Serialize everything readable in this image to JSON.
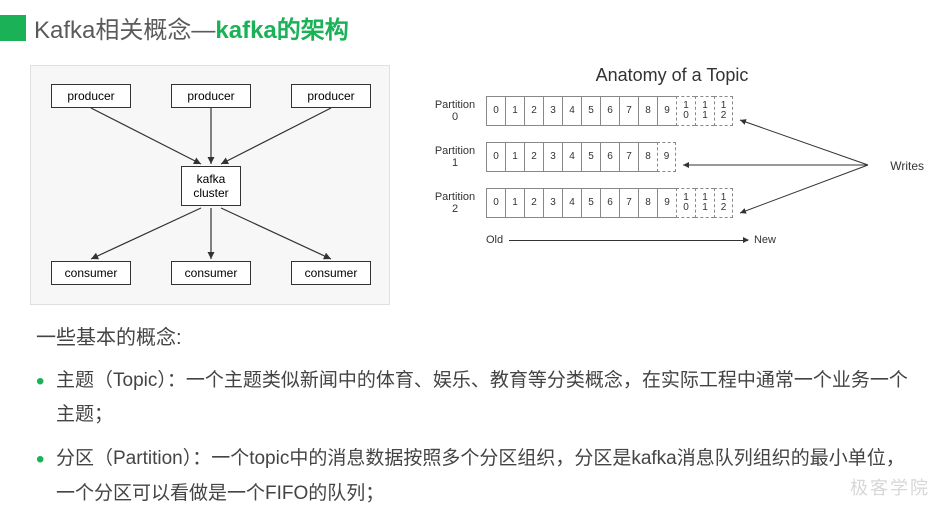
{
  "title": {
    "prefix": "Kafka相关概念— ",
    "highlight": "kafka的架构"
  },
  "colors": {
    "accent": "#1bb156",
    "text": "#444",
    "box_border": "#333",
    "diagram_bg": "#f7f7f7"
  },
  "diagram_left": {
    "producers": [
      "producer",
      "producer",
      "producer"
    ],
    "cluster": "kafka\ncluster",
    "consumers": [
      "consumer",
      "consumer",
      "consumer"
    ]
  },
  "diagram_right": {
    "title": "Anatomy of a Topic",
    "partitions": [
      {
        "label": "Partition\n0",
        "cells": [
          "0",
          "1",
          "2",
          "3",
          "4",
          "5",
          "6",
          "7",
          "8",
          "9",
          "10",
          "11",
          "12"
        ],
        "dashed_from": 10
      },
      {
        "label": "Partition\n1",
        "cells": [
          "0",
          "1",
          "2",
          "3",
          "4",
          "5",
          "6",
          "7",
          "8",
          "9"
        ],
        "dashed_from": 9
      },
      {
        "label": "Partition\n2",
        "cells": [
          "0",
          "1",
          "2",
          "3",
          "4",
          "5",
          "6",
          "7",
          "8",
          "9",
          "10",
          "11",
          "12"
        ],
        "dashed_from": 10
      }
    ],
    "timeline_old": "Old",
    "timeline_new": "New",
    "writes_label": "Writes"
  },
  "content": {
    "section_title": "一些基本的概念:",
    "bullets": [
      "主题（Topic）：一个主题类似新闻中的体育、娱乐、教育等分类概念，在实际工程中通常一个业务一个主题；",
      "分区（Partition）：一个topic中的消息数据按照多个分区组织，分区是kafka消息队列组织的最小单位，一个分区可以看做是一个FIFO的队列；"
    ]
  },
  "watermark": "极客学院"
}
